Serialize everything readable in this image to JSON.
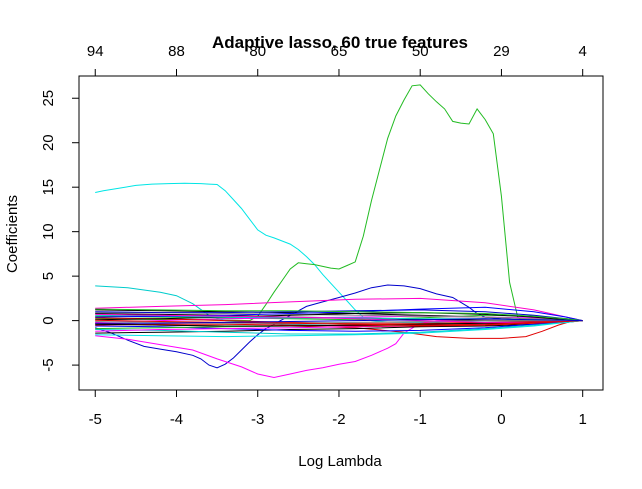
{
  "chart_data": {
    "type": "line",
    "title": "Adaptive lasso, 60 true features",
    "xlabel": "Log Lambda",
    "ylabel": "Coefficients",
    "xlim": [
      -5.2,
      1.25
    ],
    "ylim": [
      -7.8,
      27.5
    ],
    "grid": false,
    "legend": "none",
    "x_ticks": [
      -5,
      -4,
      -3,
      -2,
      -1,
      0,
      1
    ],
    "x_tick_labels": [
      "-5",
      "-4",
      "-3",
      "-2",
      "-1",
      "0",
      "1"
    ],
    "y_ticks": [
      -5,
      0,
      5,
      10,
      15,
      20,
      25
    ],
    "y_tick_labels": [
      "-5",
      "0",
      "5",
      "10",
      "15",
      "20",
      "25"
    ],
    "top_axis": {
      "ticks": [
        -5,
        -4,
        -3,
        -2,
        -1,
        0,
        1
      ],
      "labels": [
        "94",
        "88",
        "80",
        "65",
        "50",
        "29",
        "4"
      ]
    },
    "series": [
      {
        "color": "#00e5e5",
        "x": [
          -5,
          -4.9,
          -4.7,
          -4.5,
          -4.3,
          -4.1,
          -3.9,
          -3.7,
          -3.6,
          -3.5,
          -3.4,
          -3.3,
          -3.2,
          -3.1,
          -3.0,
          -2.9,
          -2.8,
          -2.6,
          -2.5,
          -2.4,
          -2.3,
          -2.2,
          -2.1,
          -2.0,
          -1.9,
          -1.8,
          -1.7,
          -1.6,
          -1.4,
          -1.2,
          -1.0,
          -0.8,
          -0.6,
          -0.4,
          -0.2,
          0.0,
          0.2,
          0.4,
          0.6,
          0.8,
          1.0
        ],
        "y": [
          14.4,
          14.6,
          14.9,
          15.2,
          15.35,
          15.4,
          15.45,
          15.4,
          15.35,
          15.3,
          14.6,
          13.6,
          12.6,
          11.4,
          10.2,
          9.6,
          9.3,
          8.6,
          8.0,
          7.2,
          6.3,
          5.2,
          4.2,
          3.2,
          2.2,
          1.2,
          0.4,
          0.0,
          -0.15,
          -0.2,
          -0.2,
          -0.15,
          -0.1,
          -0.05,
          0,
          0,
          0,
          0,
          0,
          0,
          0
        ]
      },
      {
        "color": "#22bb22",
        "x": [
          -5,
          -4.0,
          -3.3,
          -3.1,
          -3.0,
          -2.9,
          -2.8,
          -2.7,
          -2.6,
          -2.5,
          -2.4,
          -2.3,
          -2.2,
          -2.1,
          -2.0,
          -1.9,
          -1.8,
          -1.7,
          -1.6,
          -1.5,
          -1.4,
          -1.3,
          -1.2,
          -1.1,
          -1.0,
          -0.9,
          -0.8,
          -0.7,
          -0.6,
          -0.5,
          -0.4,
          -0.3,
          -0.2,
          -0.1,
          0.0,
          0.1,
          0.2,
          0.3,
          0.45,
          0.6,
          0.8,
          1.0
        ],
        "y": [
          0.2,
          0.1,
          0.05,
          0.0,
          0.5,
          1.8,
          3.2,
          4.5,
          5.8,
          6.5,
          6.4,
          6.3,
          6.1,
          5.9,
          5.8,
          6.2,
          6.6,
          9.5,
          13.5,
          17.0,
          20.5,
          23.0,
          24.8,
          26.4,
          26.5,
          25.5,
          24.6,
          23.8,
          22.4,
          22.2,
          22.1,
          23.8,
          22.6,
          21.0,
          14.0,
          4.3,
          0.4,
          -0.3,
          -0.2,
          -0.1,
          0.0,
          0.0
        ]
      },
      {
        "color": "#0000cc",
        "x": [
          -5,
          -4.8,
          -4.6,
          -4.4,
          -4.2,
          -4.0,
          -3.8,
          -3.7,
          -3.6,
          -3.5,
          -3.4,
          -3.3,
          -3.2,
          -3.1,
          -3.0,
          -2.9,
          -2.8,
          -2.6,
          -2.4,
          -2.2,
          -2.0,
          -1.8,
          -1.6,
          -1.4,
          -1.2,
          -1.0,
          -0.8,
          -0.6,
          -0.4,
          -0.3,
          -0.2,
          0.0,
          0.2,
          0.4,
          0.6,
          0.8,
          1.0
        ],
        "y": [
          -0.8,
          -1.4,
          -2.2,
          -2.9,
          -3.2,
          -3.5,
          -3.9,
          -4.3,
          -5.0,
          -5.3,
          -4.9,
          -4.2,
          -3.3,
          -2.4,
          -1.6,
          -0.9,
          -0.4,
          0.6,
          1.6,
          2.1,
          2.6,
          3.1,
          3.7,
          4.0,
          3.9,
          3.6,
          3.0,
          2.6,
          1.5,
          0.8,
          0.4,
          0.2,
          0.1,
          0.05,
          0,
          0,
          0
        ]
      },
      {
        "color": "#ff00ff",
        "x": [
          -5,
          -4.6,
          -4.2,
          -3.8,
          -3.5,
          -3.2,
          -3.0,
          -2.8,
          -2.6,
          -2.4,
          -2.2,
          -2.0,
          -1.8,
          -1.6,
          -1.4,
          -1.3,
          -1.2,
          -1.0,
          -0.8,
          -0.6,
          -0.4,
          -0.2,
          0.0,
          0.2,
          0.4,
          0.6,
          0.8,
          1.0
        ],
        "y": [
          -1.7,
          -2.1,
          -2.7,
          -3.3,
          -4.3,
          -5.2,
          -6.0,
          -6.4,
          -6.0,
          -5.6,
          -5.3,
          -4.9,
          -4.6,
          -3.9,
          -3.1,
          -2.6,
          -1.4,
          -0.3,
          0.0,
          0.05,
          0.05,
          0.05,
          0,
          0,
          0,
          0,
          0,
          0
        ]
      },
      {
        "color": "#00cccc",
        "x": [
          -5,
          -4.6,
          -4.2,
          -4.0,
          -3.8,
          -3.6,
          -3.4,
          -3.0,
          -2.6,
          -2.2,
          -1.8,
          -1.4,
          -1.0,
          -0.6,
          -0.2,
          0.2,
          0.6,
          1.0
        ],
        "y": [
          3.9,
          3.7,
          3.2,
          2.8,
          1.9,
          0.6,
          0.0,
          -0.3,
          -0.4,
          -0.5,
          -0.6,
          -0.6,
          -0.4,
          -0.3,
          -0.2,
          -0.1,
          0,
          0
        ]
      },
      {
        "color": "#ff00cc",
        "x": [
          -5,
          -4.2,
          -3.4,
          -2.6,
          -1.8,
          -1.0,
          -0.2,
          0.4,
          0.8,
          1.0
        ],
        "y": [
          1.4,
          1.6,
          1.8,
          2.1,
          2.4,
          2.5,
          2.0,
          1.2,
          0.4,
          0
        ]
      },
      {
        "color": "#e00000",
        "x": [
          -5,
          -4.2,
          -3.4,
          -2.6,
          -1.8,
          -1.2,
          -0.8,
          -0.4,
          0.0,
          0.3,
          0.5,
          0.7,
          0.85,
          1.0
        ],
        "y": [
          -0.3,
          -0.5,
          -0.6,
          -0.6,
          -0.8,
          -1.3,
          -1.8,
          -2.0,
          -2.0,
          -1.8,
          -1.2,
          -0.5,
          -0.1,
          0
        ]
      },
      {
        "color": "#000000",
        "x": [
          -5,
          -4.2,
          -3.4,
          -2.6,
          -1.8,
          -1.0,
          -0.2,
          0.4,
          0.8,
          1.0
        ],
        "y": [
          0.8,
          0.7,
          0.6,
          0.4,
          0.3,
          0.15,
          0.05,
          0.0,
          0.0,
          0
        ]
      },
      {
        "color": "#000000",
        "x": [
          -5,
          -4.2,
          -3.4,
          -2.6,
          -1.8,
          -1.0,
          -0.2,
          0.4,
          0.8,
          1.0
        ],
        "y": [
          -1.4,
          -1.3,
          -1.2,
          -1.0,
          -0.9,
          -0.7,
          -0.6,
          -0.4,
          -0.2,
          0
        ]
      },
      {
        "color": "#000000",
        "x": [
          -5,
          -4.2,
          -3.4,
          -2.6,
          -1.8,
          -1.0,
          -0.2,
          0.4,
          0.8,
          1.0
        ],
        "y": [
          1.2,
          1.1,
          1.0,
          0.9,
          0.8,
          0.6,
          0.4,
          0.2,
          0.1,
          0
        ]
      },
      {
        "color": "#0000ff",
        "x": [
          -5,
          -4.2,
          -3.4,
          -2.6,
          -1.8,
          -1.0,
          -0.2,
          0.4,
          0.8,
          1.0
        ],
        "y": [
          -0.6,
          -0.7,
          -0.9,
          -1.1,
          -1.2,
          -1.1,
          -0.8,
          -0.4,
          -0.1,
          0
        ]
      },
      {
        "color": "#22bb22",
        "x": [
          -5,
          -4.2,
          -3.4,
          -2.6,
          -1.8,
          -1.0,
          -0.2,
          0.4,
          0.8,
          1.0
        ],
        "y": [
          0.5,
          0.4,
          0.3,
          0.2,
          0.1,
          0.3,
          0.6,
          0.5,
          0.2,
          0
        ]
      },
      {
        "color": "#ff00ff",
        "x": [
          -5,
          -4.2,
          -3.4,
          -2.6,
          -1.8,
          -1.0,
          -0.2,
          0.4,
          0.8,
          1.0
        ],
        "y": [
          -0.2,
          0.0,
          0.2,
          0.3,
          0.4,
          0.5,
          0.4,
          0.3,
          0.1,
          0
        ]
      },
      {
        "color": "#e00000",
        "x": [
          -5,
          -4.2,
          -3.4,
          -2.6,
          -1.8,
          -1.0,
          -0.2,
          0.4,
          0.8,
          1.0
        ],
        "y": [
          0.3,
          0.2,
          0.0,
          -0.2,
          -0.3,
          -0.3,
          -0.2,
          -0.1,
          0.0,
          0
        ]
      },
      {
        "color": "#00cccc",
        "x": [
          -5,
          -4.2,
          -3.4,
          -2.6,
          -1.8,
          -1.0,
          -0.2,
          0.4,
          0.8,
          1.0
        ],
        "y": [
          -1.0,
          -1.1,
          -1.3,
          -1.5,
          -1.5,
          -1.3,
          -0.9,
          -0.5,
          -0.2,
          0
        ]
      },
      {
        "color": "#888888",
        "x": [
          -5,
          -4.2,
          -3.4,
          -2.6,
          -1.8,
          -1.0,
          -0.2,
          0.4,
          0.8,
          1.0
        ],
        "y": [
          0.9,
          0.9,
          0.8,
          0.7,
          0.6,
          0.5,
          0.4,
          0.2,
          0.1,
          0
        ]
      },
      {
        "color": "#0000cc",
        "x": [
          -5,
          -4.2,
          -3.4,
          -2.6,
          -1.8,
          -1.0,
          -0.2,
          0.4,
          0.8,
          1.0
        ],
        "y": [
          1.0,
          0.9,
          0.9,
          1.0,
          1.1,
          1.2,
          1.0,
          0.6,
          0.2,
          0
        ]
      },
      {
        "color": "#22bb22",
        "x": [
          -5,
          -4.2,
          -3.4,
          -2.6,
          -1.8,
          -1.0,
          -0.2,
          0.4,
          0.8,
          1.0
        ],
        "y": [
          -0.9,
          -0.8,
          -0.7,
          -0.6,
          -0.5,
          -0.4,
          -0.3,
          -0.2,
          -0.1,
          0
        ]
      },
      {
        "color": "#000000",
        "x": [
          -5,
          -4.2,
          -3.4,
          -2.6,
          -1.8,
          -1.0,
          -0.2,
          0.4,
          0.8,
          1.0
        ],
        "y": [
          0.1,
          0.2,
          0.4,
          0.6,
          0.8,
          0.9,
          0.7,
          0.4,
          0.1,
          0
        ]
      },
      {
        "color": "#ff00ff",
        "x": [
          -5,
          -4.2,
          -3.4,
          -2.6,
          -1.8,
          -1.0,
          -0.2,
          0.4,
          0.8,
          1.0
        ],
        "y": [
          -1.2,
          -1.0,
          -0.9,
          -0.8,
          -0.7,
          -0.6,
          -0.4,
          -0.2,
          -0.1,
          0
        ]
      },
      {
        "color": "#00cccc",
        "x": [
          -5,
          -4.2,
          -3.4,
          -2.6,
          -1.8,
          -1.0,
          -0.2,
          0.4,
          0.8,
          1.0
        ],
        "y": [
          0.6,
          0.5,
          0.4,
          0.3,
          0.3,
          0.2,
          0.2,
          0.1,
          0.05,
          0
        ]
      },
      {
        "color": "#e00000",
        "x": [
          -5,
          -4.2,
          -3.4,
          -2.6,
          -1.8,
          -1.0,
          -0.2,
          0.4,
          0.8,
          1.0
        ],
        "y": [
          -0.5,
          -0.4,
          -0.4,
          -0.5,
          -0.6,
          -0.6,
          -0.5,
          -0.3,
          -0.1,
          0
        ]
      },
      {
        "color": "#0000ff",
        "x": [
          -5,
          -4.2,
          -3.4,
          -2.6,
          -1.8,
          -1.0,
          -0.2,
          0.4,
          0.8,
          1.0
        ],
        "y": [
          0.4,
          0.5,
          0.6,
          0.8,
          1.0,
          1.3,
          1.5,
          1.0,
          0.4,
          0
        ]
      },
      {
        "color": "#888888",
        "x": [
          -5,
          -4.2,
          -3.4,
          -2.6,
          -1.8,
          -1.0,
          -0.2,
          0.4,
          0.8,
          1.0
        ],
        "y": [
          -0.1,
          -0.2,
          -0.3,
          -0.3,
          -0.2,
          -0.1,
          0.0,
          0.0,
          0.0,
          0
        ]
      },
      {
        "color": "#22bb22",
        "x": [
          -5,
          -4.2,
          -3.4,
          -2.6,
          -1.8,
          -1.0,
          -0.2,
          0.4,
          0.8,
          1.0
        ],
        "y": [
          1.3,
          1.2,
          1.1,
          1.1,
          1.0,
          0.9,
          0.8,
          0.5,
          0.2,
          0
        ]
      },
      {
        "color": "#000000",
        "x": [
          -5,
          -4.2,
          -3.4,
          -2.6,
          -1.8,
          -1.0,
          -0.2,
          0.4,
          0.8,
          1.0
        ],
        "y": [
          -0.4,
          -0.5,
          -0.6,
          -0.6,
          -0.5,
          -0.4,
          -0.3,
          -0.2,
          -0.1,
          0
        ]
      },
      {
        "color": "#ff00cc",
        "x": [
          -5,
          -4.2,
          -3.4,
          -2.6,
          -1.8,
          -1.0,
          -0.2,
          0.4,
          0.8,
          1.0
        ],
        "y": [
          0.7,
          0.6,
          0.5,
          0.4,
          0.2,
          0.0,
          -0.2,
          -0.2,
          -0.1,
          0
        ]
      },
      {
        "color": "#00e5e5",
        "x": [
          -5,
          -4.2,
          -3.4,
          -2.6,
          -1.8,
          -1.0,
          -0.2,
          0.4,
          0.8,
          1.0
        ],
        "y": [
          -1.6,
          -1.7,
          -1.8,
          -1.7,
          -1.6,
          -1.4,
          -1.0,
          -0.6,
          -0.2,
          0
        ]
      },
      {
        "color": "#e00000",
        "x": [
          -5,
          -4.2,
          -3.4,
          -2.6,
          -1.8,
          -1.0,
          -0.2,
          0.4,
          0.8,
          1.0
        ],
        "y": [
          0.05,
          -0.1,
          -0.2,
          -0.3,
          -0.4,
          -0.5,
          -0.4,
          -0.2,
          -0.1,
          0
        ]
      },
      {
        "color": "#0000cc",
        "x": [
          -5,
          -4.2,
          -3.4,
          -2.6,
          -1.8,
          -1.0,
          -0.2,
          0.4,
          0.8,
          1.0
        ],
        "y": [
          -0.3,
          -0.3,
          -0.2,
          -0.1,
          0.0,
          0.1,
          0.2,
          0.1,
          0.05,
          0
        ]
      }
    ]
  }
}
